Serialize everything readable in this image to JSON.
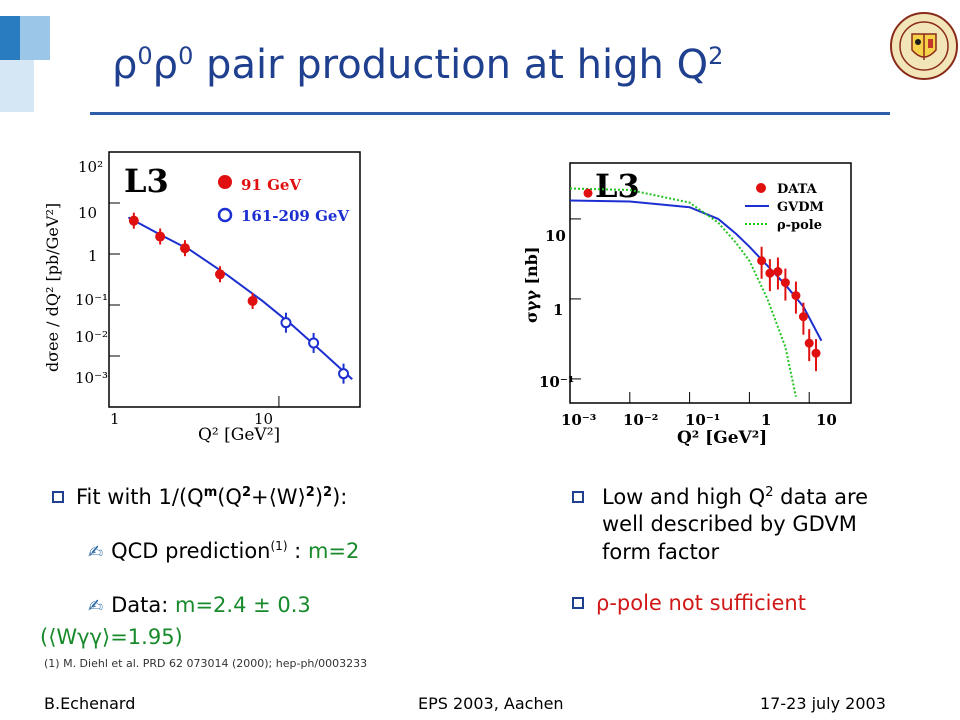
{
  "slide": {
    "title_main": "ρ⁰ρ⁰ pair production at high Q",
    "title_rho": "ρ",
    "title_zero": "0",
    "title_text": " pair production at high Q",
    "title_exp": "2"
  },
  "left_chart": {
    "badge": "L3",
    "legend": [
      "91 GeV",
      "161-209 GeV"
    ],
    "ylabel": "dσee / dQ² [pb/GeV²]",
    "xlabel": "Q² [GeV²]",
    "yticks": [
      "10²",
      "10",
      "1",
      "10⁻¹",
      "10⁻²",
      "10⁻³"
    ],
    "xticks": [
      "1",
      "10"
    ]
  },
  "right_chart": {
    "badge": "L3",
    "legend": [
      "DATA",
      "GVDM",
      "ρ-pole"
    ],
    "ylabel": "σγγ [nb]",
    "xlabel": "Q² [GeV²]",
    "yticks": [
      "10",
      "1",
      "10⁻¹"
    ],
    "xticks": [
      "10⁻³",
      "10⁻²",
      "10⁻¹",
      "1",
      "10"
    ]
  },
  "chart_data": [
    {
      "type": "scatter",
      "xscale": "log",
      "yscale": "log",
      "xlim": [
        1,
        30
      ],
      "ylim": [
        0.001,
        100
      ],
      "series": [
        {
          "name": "91 GeV",
          "x": [
            1.4,
            2.0,
            2.8,
            4.5,
            7.0
          ],
          "y": [
            4.5,
            2.2,
            1.3,
            0.4,
            0.12
          ]
        },
        {
          "name": "161-209 GeV",
          "x": [
            11,
            16,
            24
          ],
          "y": [
            0.045,
            0.018,
            0.0045
          ]
        }
      ],
      "fit": {
        "x": [
          1.3,
          2,
          3,
          5,
          8,
          12,
          18,
          27
        ],
        "y": [
          5.2,
          2.4,
          1.2,
          0.38,
          0.12,
          0.04,
          0.012,
          0.0035
        ]
      }
    },
    {
      "type": "scatter",
      "xscale": "log",
      "yscale": "log",
      "xlim": [
        0.001,
        50
      ],
      "ylim": [
        0.05,
        50
      ],
      "series": [
        {
          "name": "DATA",
          "x": [
            0.002,
            1.6,
            2.2,
            3.0,
            4.0,
            6.0,
            8.0,
            10.0,
            13.0
          ],
          "y": [
            21,
            3.0,
            2.1,
            2.2,
            1.6,
            1.1,
            0.6,
            0.28,
            0.21
          ]
        },
        {
          "name": "GVDM",
          "x": [
            0.001,
            0.01,
            0.1,
            0.3,
            0.6,
            1,
            2,
            4,
            8,
            16
          ],
          "y": [
            17,
            16.5,
            14,
            10,
            6.5,
            4.5,
            2.6,
            1.5,
            0.8,
            0.3
          ]
        },
        {
          "name": "ρ-pole",
          "x": [
            0.001,
            0.01,
            0.1,
            0.3,
            0.6,
            1,
            2,
            4,
            6
          ],
          "y": [
            24,
            23,
            16,
            9,
            5,
            3,
            1,
            0.25,
            0.06
          ]
        }
      ]
    }
  ],
  "bullets_left": {
    "b1_a": "Fit with 1/(Q",
    "b1_m": "m",
    "b1_b": "(Q",
    "b1_2a": "2",
    "b1_c": "+⟨W⟩",
    "b1_2b": "2",
    "b1_d": ")",
    "b1_2c": "2",
    "b1_e": "):",
    "b2_a": "QCD prediction",
    "b2_sup": "(1)",
    "b2_b": " : ",
    "b2_c": "m=2",
    "b3_a": "Data: ",
    "b3_b": "m=2.4 ± 0.3",
    "b3b": "(⟨Wγγ⟩=1.95)",
    "ref": "(1) M. Diehl et al. PRD 62 073014 (2000); hep-ph/0003233"
  },
  "bullets_right": {
    "rb1_a": "Low and high Q",
    "rb1_sup": "2",
    "rb1_b": " data are well described by GDVM form factor",
    "rb2": "ρ-pole not sufficient"
  },
  "footer": {
    "left": "B.Echenard",
    "center": "EPS 2003, Aachen",
    "right": "17-23 july 2003"
  },
  "colors": {
    "title": "#1f3f8f",
    "data": "#e01010",
    "fit": "#1d2fd0",
    "pole": "#22c322",
    "green_text": "#178a2b"
  }
}
